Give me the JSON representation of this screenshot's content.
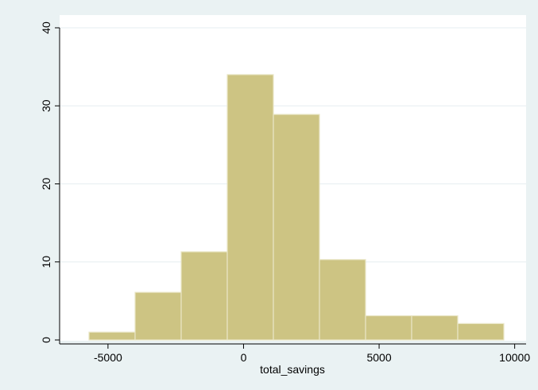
{
  "chart_data": {
    "type": "histogram",
    "title": "",
    "xlabel": "total_savings",
    "ylabel": "",
    "xlim": [
      -6400,
      10600
    ],
    "ylim": [
      0,
      40
    ],
    "xticks": [
      -5000,
      0,
      5000,
      10000
    ],
    "yticks": [
      0,
      10,
      20,
      30,
      40
    ],
    "grid": true,
    "bins": [
      {
        "x0": -5700,
        "x1": -4000,
        "value": 1
      },
      {
        "x0": -4000,
        "x1": -2300,
        "value": 6.1
      },
      {
        "x0": -2300,
        "x1": -600,
        "value": 11.3
      },
      {
        "x0": -600,
        "x1": 1100,
        "value": 34
      },
      {
        "x0": 1100,
        "x1": 2800,
        "value": 28.9
      },
      {
        "x0": 2800,
        "x1": 4500,
        "value": 10.3
      },
      {
        "x0": 4500,
        "x1": 6200,
        "value": 3.1
      },
      {
        "x0": 6200,
        "x1": 7900,
        "value": 3.1
      },
      {
        "x0": 7900,
        "x1": 9600,
        "value": 2.1
      }
    ],
    "colors": {
      "background": "#eaf2f3",
      "plot_area": "#ffffff",
      "bar_fill": "#cdc483",
      "bar_edge": "#e9e6c6",
      "grid": "#e6eef0",
      "axis": "#000000"
    }
  }
}
